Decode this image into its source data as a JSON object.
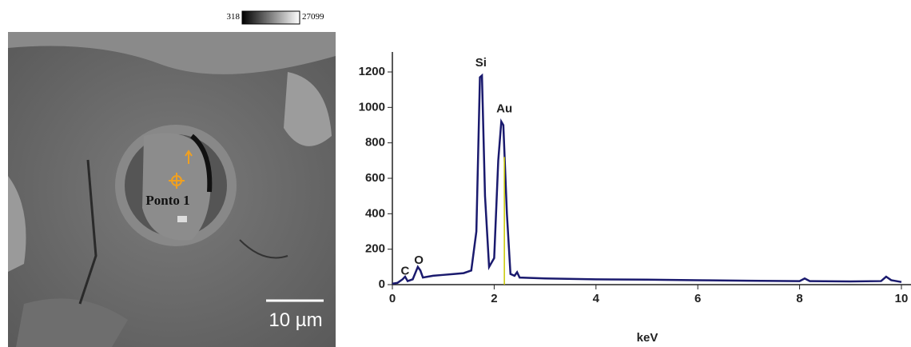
{
  "image": {
    "colorbar_min": "318",
    "colorbar_max": "27099",
    "point_label": "Ponto 1",
    "scale_label": "10 µm"
  },
  "chart_data": {
    "type": "line",
    "xlabel": "keV",
    "x": [
      0,
      0.1,
      0.2,
      0.25,
      0.3,
      0.4,
      0.5,
      0.55,
      0.6,
      0.8,
      1.0,
      1.2,
      1.4,
      1.55,
      1.65,
      1.72,
      1.76,
      1.82,
      1.9,
      2.0,
      2.08,
      2.14,
      2.18,
      2.25,
      2.32,
      2.4,
      2.45,
      2.5,
      3,
      4,
      5,
      6,
      7,
      8,
      8.1,
      8.2,
      9,
      9.6,
      9.7,
      9.8,
      10
    ],
    "series": [
      {
        "color": "#1a1a6e",
        "values": [
          5,
          10,
          30,
          45,
          20,
          30,
          100,
          80,
          40,
          50,
          55,
          60,
          65,
          80,
          300,
          1170,
          1180,
          500,
          100,
          150,
          700,
          920,
          900,
          400,
          60,
          50,
          70,
          40,
          35,
          30,
          28,
          25,
          22,
          20,
          35,
          20,
          18,
          20,
          45,
          25,
          15
        ]
      }
    ],
    "markers": [
      {
        "x": 2.2,
        "y": 720,
        "color": "#c8c800"
      }
    ],
    "annotations": [
      {
        "text": "C",
        "x": 0.25,
        "y": 75
      },
      {
        "text": "O",
        "x": 0.52,
        "y": 135
      },
      {
        "text": "Si",
        "x": 1.74,
        "y": 1250
      },
      {
        "text": "Au",
        "x": 2.2,
        "y": 990
      }
    ],
    "xlim": [
      0,
      10
    ],
    "ylim": [
      0,
      1200
    ],
    "xticks": [
      0,
      2,
      4,
      6,
      8,
      10
    ],
    "yticks": [
      0,
      200,
      400,
      600,
      800,
      1000,
      1200
    ]
  }
}
